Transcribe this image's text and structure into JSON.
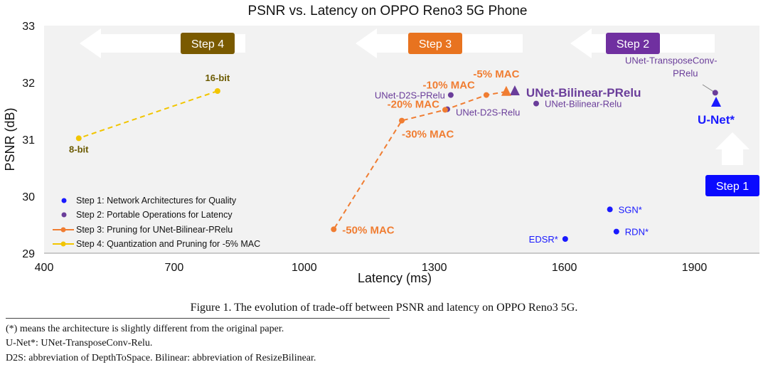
{
  "chart_data": {
    "type": "scatter",
    "title": "PSNR vs. Latency on OPPO Reno3 5G Phone",
    "xlabel": "Latency (ms)",
    "ylabel": "PSNR (dB)",
    "xlim": [
      400,
      2050
    ],
    "ylim": [
      29,
      33
    ],
    "xticks": [
      "400",
      "700",
      "1000",
      "1300",
      "1600",
      "1900"
    ],
    "yticks": [
      "29",
      "30",
      "31",
      "32",
      "33"
    ],
    "grid": false,
    "legend_position": "bottom-left",
    "legend": [
      "Step 1: Network Architectures for Quality",
      "Step 2: Portable Operations for Latency",
      "Step 3: Pruning for UNet-Bilinear-PRelu",
      "Step 4: Quantization and Pruning for -5% MAC"
    ],
    "step_banners": [
      "Step 4",
      "Step 3",
      "Step 2",
      "Step 1"
    ],
    "colors": {
      "step1": "#1a1aff",
      "step2": "#6a3d9a",
      "step3": "#f07d32",
      "step4": "#f2c500",
      "step4_banner": "#7a5a00",
      "step3_banner": "#e8731f",
      "step2_banner": "#7030a0",
      "step1_banner": "#0a0aff"
    },
    "series": [
      {
        "name": "Step 1: Network Architectures for Quality",
        "points": [
          {
            "label": "SGN*",
            "x": 1705,
            "y": 29.77
          },
          {
            "label": "RDN*",
            "x": 1720,
            "y": 29.38
          },
          {
            "label": "EDSR*",
            "x": 1602,
            "y": 29.25
          },
          {
            "label": "U-Net*",
            "x": 1950,
            "y": 31.65
          }
        ]
      },
      {
        "name": "Step 2: Portable Operations for Latency",
        "points": [
          {
            "label": "UNet-TransposeConv-PRelu",
            "x": 1948,
            "y": 31.82
          },
          {
            "label": "UNet-D2S-PRelu",
            "x": 1338,
            "y": 31.78
          },
          {
            "label": "UNet-D2S-Relu",
            "x": 1330,
            "y": 31.53
          },
          {
            "label": "UNet-Bilinear-Relu",
            "x": 1535,
            "y": 31.63
          },
          {
            "label": "UNet-Bilinear-PRelu",
            "x": 1466,
            "y": 31.85
          }
        ]
      },
      {
        "name": "Step 3: Pruning for UNet-Bilinear-PRelu",
        "points": [
          {
            "label": "-5% MAC",
            "x": 1466,
            "y": 31.84
          },
          {
            "label": "-10% MAC",
            "x": 1420,
            "y": 31.78
          },
          {
            "label": "-20% MAC",
            "x": 1325,
            "y": 31.52
          },
          {
            "label": "-30% MAC",
            "x": 1225,
            "y": 31.33
          },
          {
            "label": "-50% MAC",
            "x": 1068,
            "y": 29.42
          }
        ]
      },
      {
        "name": "Step 4: Quantization and Pruning for -5% MAC",
        "points": [
          {
            "label": "16-bit",
            "x": 800,
            "y": 31.85
          },
          {
            "label": "8-bit",
            "x": 480,
            "y": 31.02
          }
        ]
      }
    ]
  },
  "caption": "Figure 1. The evolution of trade-off between PSNR and latency on OPPO Reno3 5G.",
  "footnotes": [
    "(*) means the architecture is slightly different from the original paper.",
    "U-Net*: UNet-TransposeConv-Relu.",
    "D2S: abbreviation of DepthToSpace. Bilinear: abbreviation of ResizeBilinear."
  ]
}
